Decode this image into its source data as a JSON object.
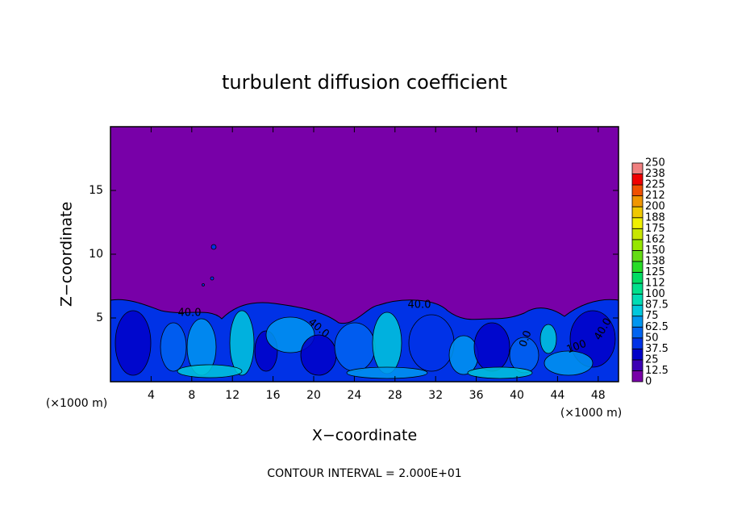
{
  "chart_data": {
    "type": "contour",
    "title": "turbulent diffusion coefficient",
    "xlabel": "X−coordinate",
    "ylabel": "Z−coordinate",
    "x_unit": "(×1000 m)",
    "footnote": "CONTOUR INTERVAL = 2.000E+01",
    "xlim": [
      0,
      50
    ],
    "ylim": [
      0,
      20
    ],
    "xticks": [
      4,
      8,
      12,
      16,
      20,
      24,
      28,
      32,
      36,
      40,
      44,
      48
    ],
    "yticks": [
      5,
      10,
      15
    ],
    "contour_labels": [
      "40.0",
      "40.0",
      "40.0",
      "40.0",
      "0.0",
      "100"
    ],
    "colorbar": {
      "levels": [
        0,
        12.5,
        25,
        37.5,
        50,
        62.5,
        75,
        87.5,
        100,
        112,
        125,
        138,
        150,
        162,
        175,
        188,
        200,
        212,
        225,
        238,
        250
      ],
      "colors": [
        "#7800a8",
        "#3c00b4",
        "#0000c8",
        "#0032e6",
        "#0064f0",
        "#0096f0",
        "#00c8dc",
        "#00dcb4",
        "#00e08c",
        "#00dc64",
        "#28dc28",
        "#64dc14",
        "#96e600",
        "#c8e600",
        "#f0f000",
        "#f0c800",
        "#f09600",
        "#f05000",
        "#f00000",
        "#f08080"
      ]
    }
  }
}
